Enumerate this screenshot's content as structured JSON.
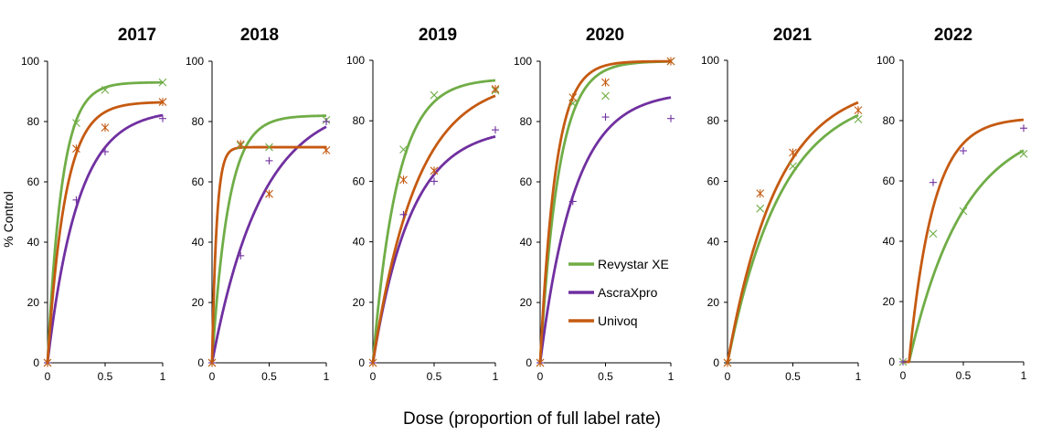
{
  "chart_data": {
    "type": "line",
    "ylabel": "% Control",
    "xlabel": "Dose (proportion of full label rate)",
    "ylim": [
      0,
      100
    ],
    "yticks": [
      "0",
      "20",
      "40",
      "60",
      "80",
      "100"
    ],
    "xticks": [
      "0",
      "0.5",
      "1"
    ],
    "xtick_values": [
      0,
      0.5,
      1
    ],
    "ytick_values": [
      0,
      20,
      40,
      60,
      80,
      100
    ],
    "colors": {
      "Revystar XE": "#70ad47",
      "AscraXpro": "#7030a0",
      "Univoq": "#c55a11"
    },
    "legend": [
      "Revystar XE",
      "AscraXpro",
      "Univoq"
    ],
    "panels": [
      {
        "title": "2017",
        "series": [
          {
            "name": "Revystar XE",
            "marker": "x",
            "points": [
              [
                0,
                0
              ],
              [
                0.25,
                79.5
              ],
              [
                0.5,
                90.5
              ],
              [
                1,
                93
              ]
            ],
            "curve": {
              "a": 93,
              "k": 8,
              "c": 0
            }
          },
          {
            "name": "AscraXpro",
            "marker": "+",
            "points": [
              [
                0,
                0
              ],
              [
                0.25,
                54
              ],
              [
                0.5,
                70
              ],
              [
                1,
                81
              ]
            ],
            "curve": {
              "a": 84,
              "k": 3.8,
              "c": 0
            }
          },
          {
            "name": "Univoq",
            "marker": "*",
            "points": [
              [
                0,
                0
              ],
              [
                0.25,
                71
              ],
              [
                0.5,
                78
              ],
              [
                1,
                86.5
              ]
            ],
            "curve": {
              "a": 86.5,
              "k": 6.5,
              "c": 0
            }
          }
        ]
      },
      {
        "title": "2018",
        "series": [
          {
            "name": "Revystar XE",
            "marker": "x",
            "points": [
              [
                0,
                0
              ],
              [
                0.25,
                72
              ],
              [
                0.5,
                71.5
              ],
              [
                1,
                80.5
              ]
            ],
            "curve": {
              "a": 82,
              "k": 7,
              "c": 0
            }
          },
          {
            "name": "AscraXpro",
            "marker": "+",
            "points": [
              [
                0,
                0
              ],
              [
                0.25,
                35.5
              ],
              [
                0.5,
                67
              ],
              [
                1,
                80
              ]
            ],
            "curve": {
              "a": 87,
              "k": 2.3,
              "c": 0
            }
          },
          {
            "name": "Univoq",
            "marker": "*",
            "points": [
              [
                0,
                0
              ],
              [
                0.25,
                72.5
              ],
              [
                0.5,
                56
              ],
              [
                1,
                70.5
              ]
            ],
            "curve": {
              "a": 71.5,
              "k": 25,
              "c": 0
            }
          }
        ]
      },
      {
        "title": "2019",
        "series": [
          {
            "name": "Revystar XE",
            "marker": "x",
            "points": [
              [
                0,
                0
              ],
              [
                0.25,
                70.5
              ],
              [
                0.5,
                88.5
              ],
              [
                1,
                90
              ]
            ],
            "curve": {
              "a": 94,
              "k": 5,
              "c": 0
            }
          },
          {
            "name": "AscraXpro",
            "marker": "+",
            "points": [
              [
                0,
                0
              ],
              [
                0.25,
                49
              ],
              [
                0.5,
                60
              ],
              [
                1,
                77
              ]
            ],
            "curve": {
              "a": 78,
              "k": 3.2,
              "c": 0
            }
          },
          {
            "name": "Univoq",
            "marker": "*",
            "points": [
              [
                0,
                0
              ],
              [
                0.25,
                60.5
              ],
              [
                0.5,
                63.5
              ],
              [
                1,
                90.5
              ]
            ],
            "curve": {
              "a": 94,
              "k": 2.8,
              "c": 0
            }
          }
        ]
      },
      {
        "title": "2020",
        "series": [
          {
            "name": "Revystar XE",
            "marker": "x",
            "points": [
              [
                0,
                0
              ],
              [
                0.25,
                86
              ],
              [
                0.5,
                88.5
              ],
              [
                1,
                100
              ]
            ],
            "curve": {
              "a": 100,
              "k": 7,
              "c": 0
            }
          },
          {
            "name": "AscraXpro",
            "marker": "+",
            "points": [
              [
                0,
                0
              ],
              [
                0.25,
                53.5
              ],
              [
                0.5,
                81.5
              ],
              [
                1,
                81
              ]
            ],
            "curve": {
              "a": 90,
              "k": 3.8,
              "c": 0
            }
          },
          {
            "name": "Univoq",
            "marker": "*",
            "points": [
              [
                0,
                0
              ],
              [
                0.25,
                88
              ],
              [
                0.5,
                93
              ],
              [
                1,
                100
              ]
            ],
            "curve": {
              "a": 100,
              "k": 8.5,
              "c": 0
            }
          }
        ]
      },
      {
        "title": "2021",
        "series": [
          {
            "name": "Revystar XE",
            "marker": "x",
            "points": [
              [
                0,
                0
              ],
              [
                0.25,
                51
              ],
              [
                0.5,
                65
              ],
              [
                1,
                80.5
              ]
            ],
            "curve": {
              "a": 90,
              "k": 2.4,
              "c": 0
            }
          },
          {
            "name": "Univoq",
            "marker": "*",
            "points": [
              [
                0,
                0
              ],
              [
                0.25,
                56
              ],
              [
                0.5,
                69.5
              ],
              [
                1,
                83.5
              ]
            ],
            "curve": {
              "a": 93,
              "k": 2.6,
              "c": 0
            }
          }
        ]
      },
      {
        "title": "2022",
        "series": [
          {
            "name": "Revystar XE",
            "marker": "x",
            "points": [
              [
                0,
                0
              ],
              [
                0.25,
                42.5
              ],
              [
                0.5,
                50
              ],
              [
                1,
                69
              ]
            ],
            "curve": {
              "a": 80,
              "k": 2.2,
              "c": 0.05
            }
          },
          {
            "name": "AscraXpro",
            "marker": "+",
            "points": [
              [
                0,
                0
              ],
              [
                0.25,
                59.5
              ],
              [
                0.5,
                70
              ],
              [
                1,
                77.5
              ]
            ],
            "curve": null
          },
          {
            "name": "Univoq",
            "marker": "*",
            "points": [],
            "curve": {
              "a": 81,
              "k": 5,
              "c": 0.05
            }
          }
        ]
      }
    ]
  }
}
